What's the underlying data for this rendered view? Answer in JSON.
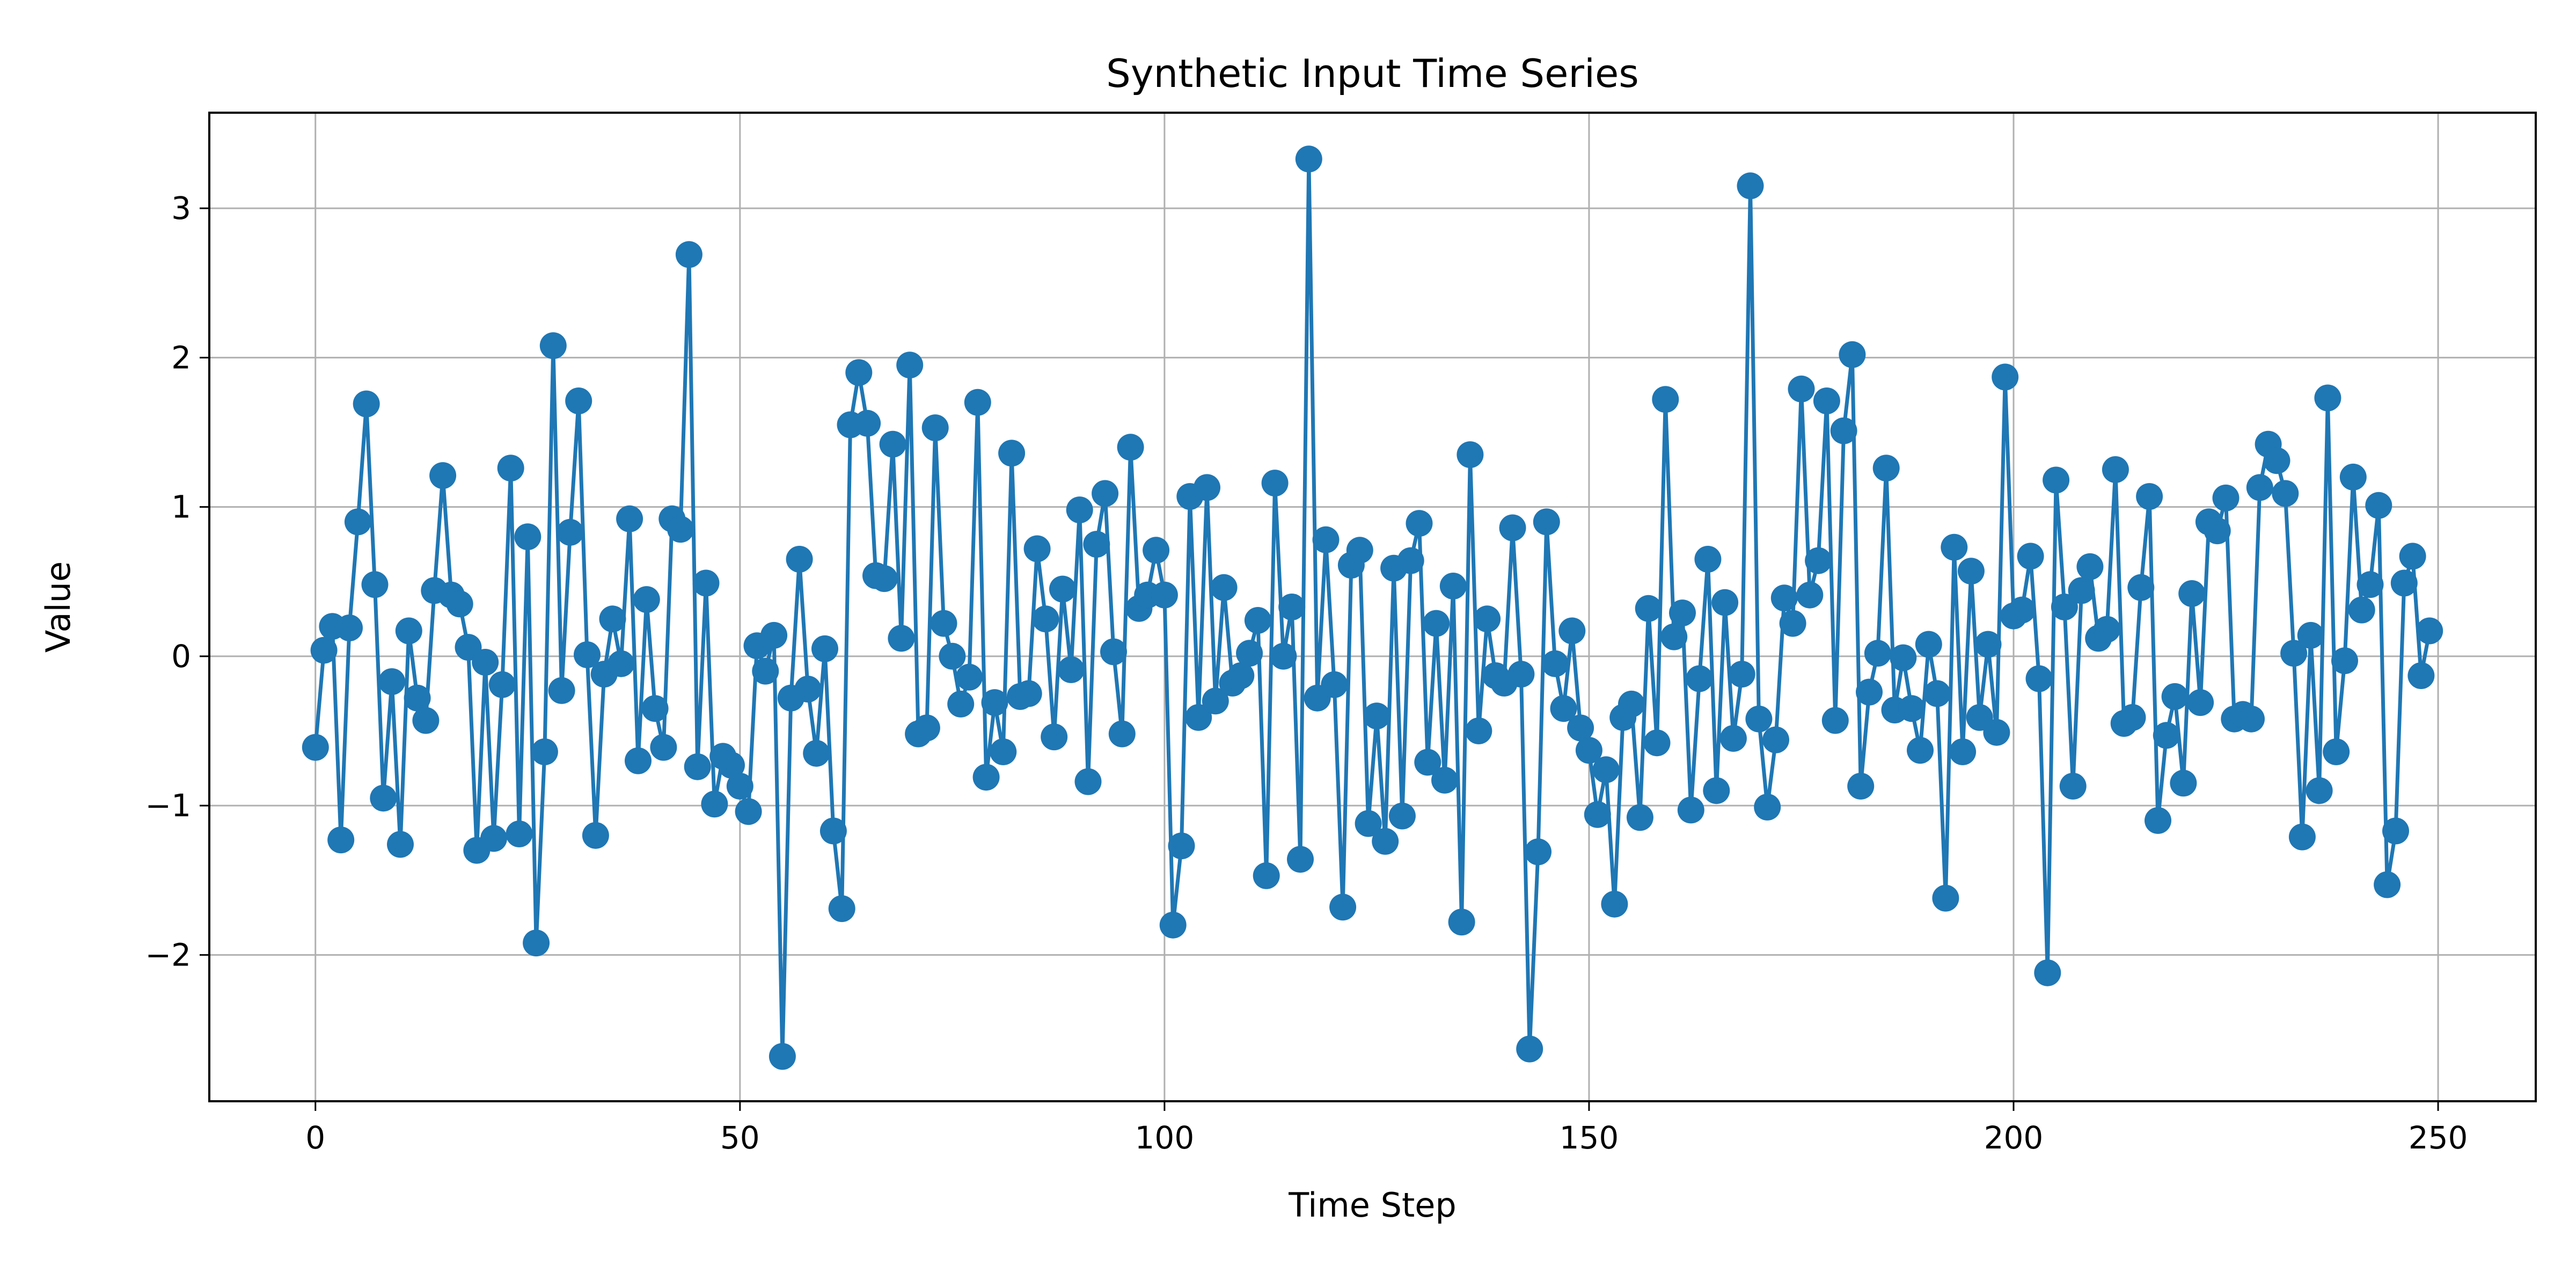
{
  "chart_data": {
    "type": "line",
    "title": "Synthetic Input Time Series",
    "xlabel": "Time Step",
    "ylabel": "Value",
    "xlim": [
      -12.5,
      261.5
    ],
    "ylim": [
      -2.98,
      3.64
    ],
    "xticks": [
      0,
      50,
      100,
      150,
      200,
      250
    ],
    "yticks": [
      -2,
      -1,
      0,
      1,
      2,
      3
    ],
    "ytick_labels": [
      "−2",
      "−1",
      "0",
      "1",
      "2",
      "3"
    ],
    "grid": true,
    "markers": true,
    "colors": {
      "series": "#1f77b4",
      "grid": "#b0b0b0",
      "axes": "#000000"
    },
    "series": [
      {
        "x_start": 0,
        "x_step": 1,
        "values": [
          -0.61,
          0.04,
          0.2,
          -1.23,
          0.19,
          0.9,
          1.69,
          0.48,
          -0.95,
          -0.17,
          -1.26,
          0.17,
          -0.28,
          -0.43,
          0.44,
          1.21,
          0.41,
          0.35,
          0.06,
          -1.3,
          -0.04,
          -1.22,
          -0.19,
          1.26,
          -1.19,
          0.8,
          -1.92,
          -0.64,
          2.08,
          -0.23,
          0.83,
          1.71,
          0.01,
          -1.2,
          -0.12,
          0.25,
          -0.05,
          0.92,
          -0.7,
          0.38,
          -0.35,
          -0.61,
          0.92,
          0.85,
          2.69,
          -0.74,
          0.49,
          -0.99,
          -0.67,
          -0.73,
          -0.87,
          -1.04,
          0.07,
          -0.1,
          0.14,
          -2.68,
          -0.28,
          0.65,
          -0.22,
          -0.65,
          0.05,
          -1.17,
          -1.69,
          1.55,
          1.9,
          1.56,
          0.54,
          0.52,
          1.42,
          0.12,
          1.95,
          -0.52,
          -0.48,
          1.53,
          0.22,
          0.0,
          -0.32,
          -0.14,
          1.7,
          -0.81,
          -0.31,
          -0.64,
          1.36,
          -0.27,
          -0.25,
          0.72,
          0.25,
          -0.54,
          0.45,
          -0.09,
          0.98,
          -0.84,
          0.75,
          1.09,
          0.03,
          -0.52,
          1.4,
          0.32,
          0.41,
          0.71,
          0.41,
          -1.8,
          -1.27,
          1.07,
          -0.41,
          1.13,
          -0.3,
          0.46,
          -0.18,
          -0.13,
          0.02,
          0.24,
          -1.47,
          1.16,
          0.0,
          0.33,
          -1.36,
          3.33,
          -0.28,
          0.78,
          -0.19,
          -1.68,
          0.61,
          0.71,
          -1.12,
          -0.4,
          -1.24,
          0.59,
          -1.07,
          0.64,
          0.89,
          -0.71,
          0.22,
          -0.83,
          0.47,
          -1.78,
          1.35,
          -0.5,
          0.25,
          -0.13,
          -0.18,
          0.86,
          -0.12,
          -2.63,
          -1.31,
          0.9,
          -0.05,
          -0.35,
          0.17,
          -0.48,
          -0.63,
          -1.06,
          -0.76,
          -1.66,
          -0.41,
          -0.32,
          -1.08,
          0.32,
          -0.58,
          1.72,
          0.13,
          0.29,
          -1.03,
          -0.15,
          0.65,
          -0.9,
          0.36,
          -0.55,
          -0.12,
          3.15,
          -0.42,
          -1.01,
          -0.56,
          0.39,
          0.22,
          1.79,
          0.41,
          0.64,
          1.71,
          -0.43,
          1.51,
          2.02,
          -0.87,
          -0.24,
          0.02,
          1.26,
          -0.36,
          -0.01,
          -0.35,
          -0.63,
          0.08,
          -0.25,
          -1.62,
          0.73,
          -0.64,
          0.57,
          -0.41,
          0.08,
          -0.51,
          1.87,
          0.27,
          0.31,
          0.67,
          -0.15,
          -2.12,
          1.18,
          0.33,
          -0.87,
          0.44,
          0.6,
          0.12,
          0.18,
          1.25,
          -0.45,
          -0.41,
          0.46,
          1.07,
          -1.1,
          -0.53,
          -0.27,
          -0.85,
          0.42,
          -0.31,
          0.9,
          0.84,
          1.06,
          -0.42,
          -0.39,
          -0.42,
          1.13,
          1.42,
          1.31,
          1.09,
          0.02,
          -1.21,
          0.14,
          -0.9,
          1.73,
          -0.64,
          -0.03,
          1.2,
          0.31,
          0.48,
          1.01,
          -1.53,
          -1.17,
          0.49,
          0.67,
          -0.13,
          0.17
        ]
      }
    ]
  }
}
